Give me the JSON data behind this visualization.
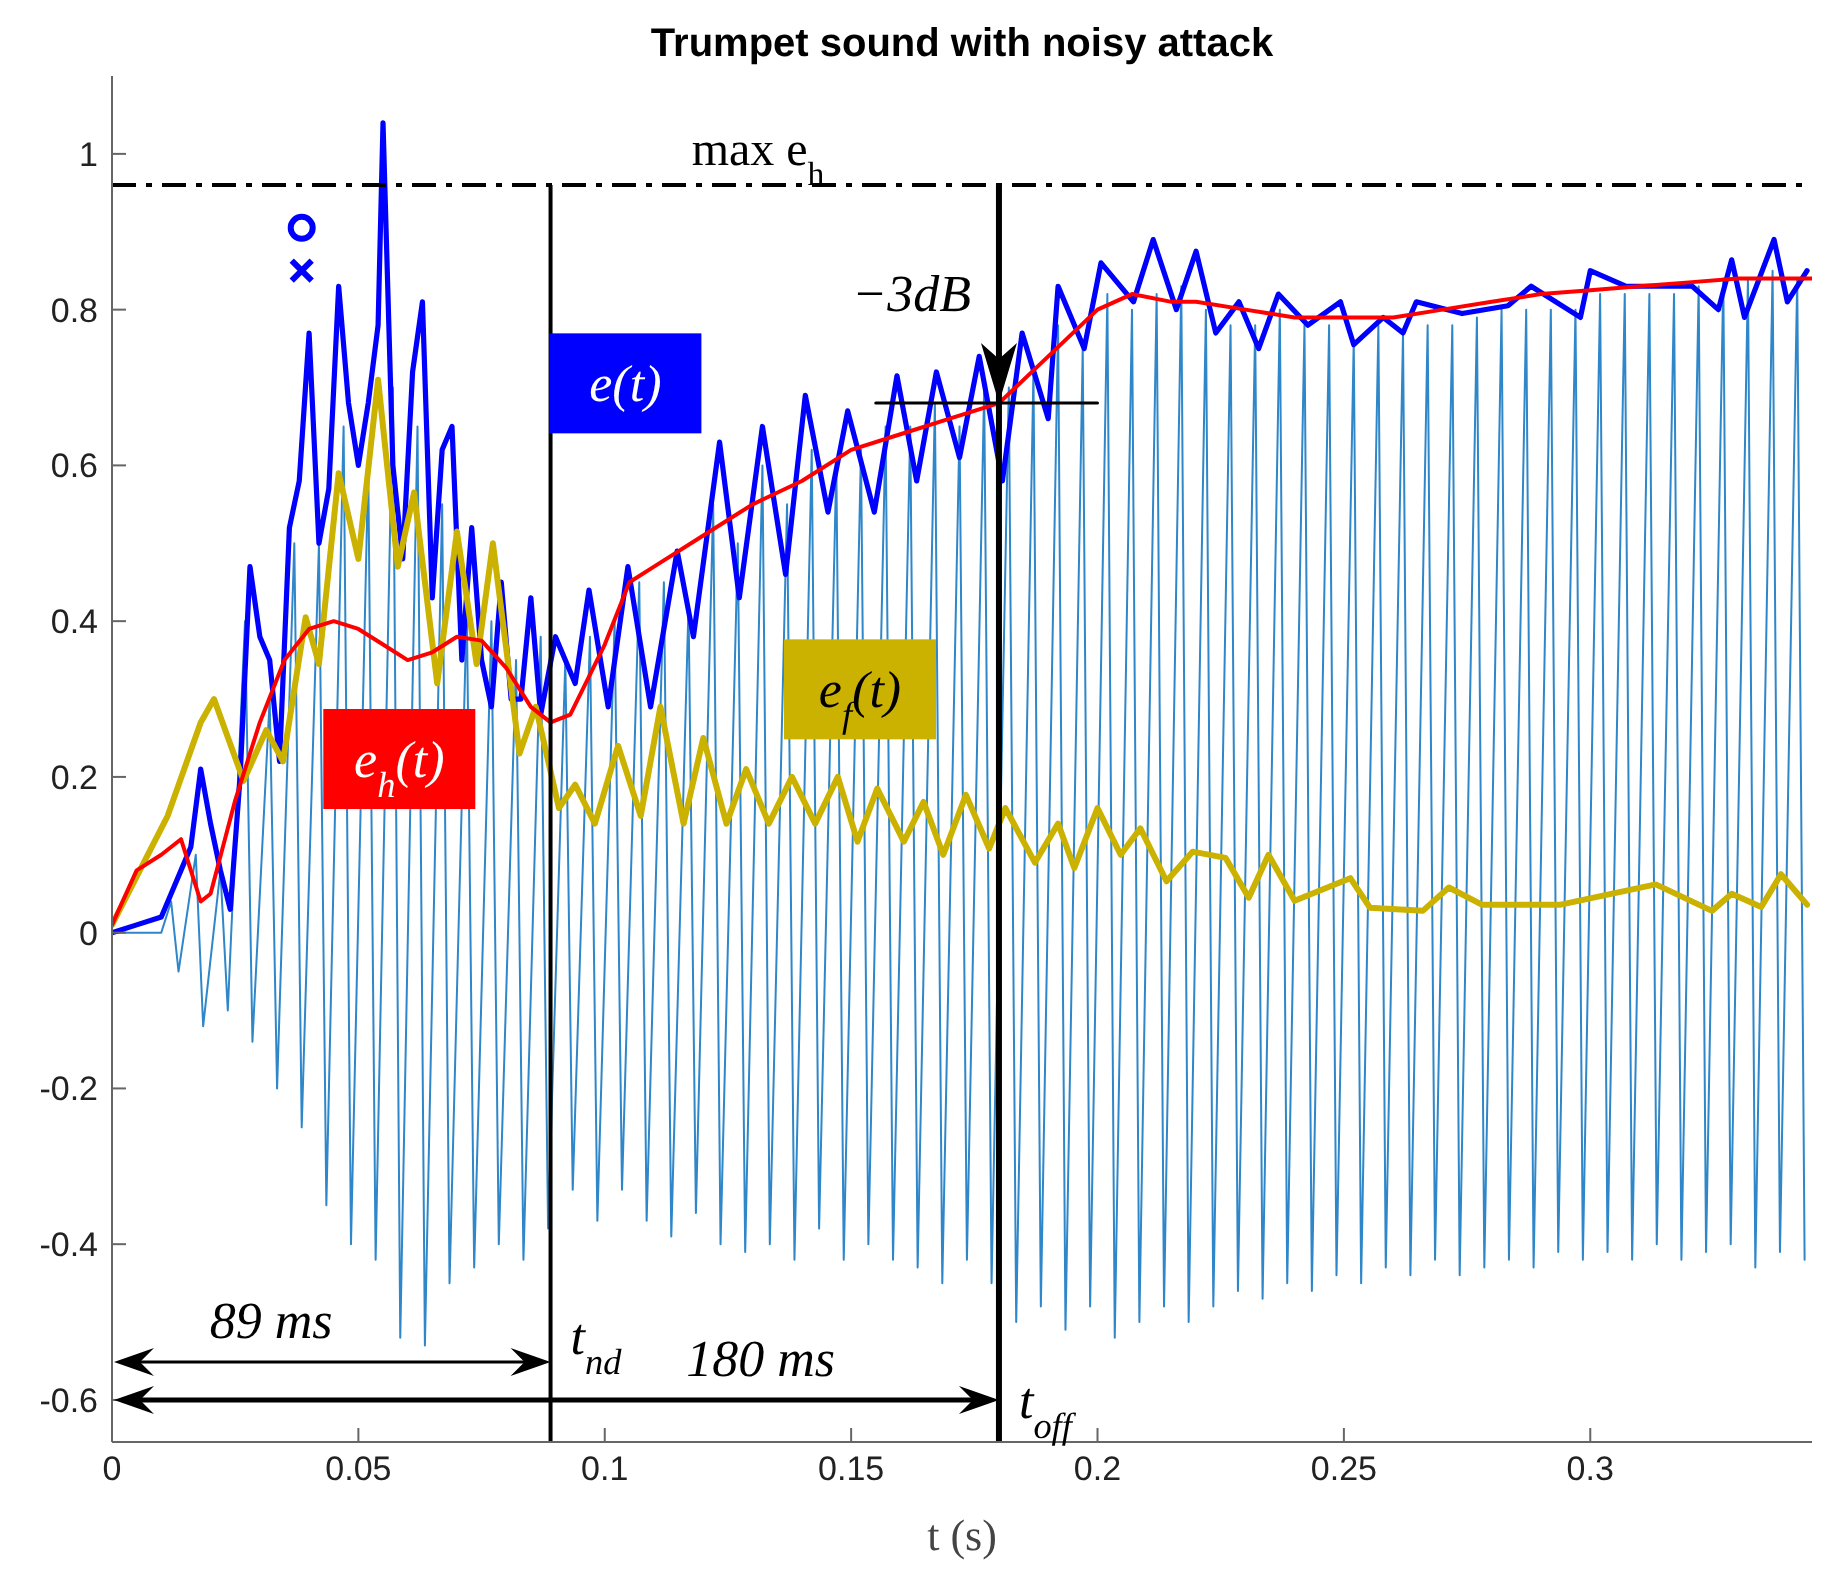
{
  "chart_data": {
    "type": "line",
    "title": "Trumpet sound with noisy attack",
    "xlabel": "t (s)",
    "xlim": [
      0,
      0.345
    ],
    "xticks": [
      0,
      0.05,
      0.1,
      0.15,
      0.2,
      0.25,
      0.3
    ],
    "ylim": [
      -0.654,
      1.1
    ],
    "yticks": [
      -0.6,
      -0.4,
      -0.2,
      0,
      0.2,
      0.4,
      0.6,
      0.8,
      1
    ],
    "marker": "none",
    "line_style": "solid",
    "series": [
      {
        "color": "#2f86c9",
        "x": [
          0,
          0.01,
          0.012,
          0.0135,
          0.017,
          0.0185,
          0.022,
          0.0235,
          0.027,
          0.0285,
          0.032,
          0.0335,
          0.037,
          0.0385,
          0.042,
          0.0435,
          0.047,
          0.0485,
          0.052,
          0.0535,
          0.057,
          0.0585,
          0.062,
          0.0635,
          0.067,
          0.0685,
          0.072,
          0.0735,
          0.077,
          0.0785,
          0.082,
          0.0835,
          0.087,
          0.0885,
          0.092,
          0.0935,
          0.097,
          0.0985,
          0.102,
          0.1035,
          0.107,
          0.1085,
          0.112,
          0.1135,
          0.117,
          0.1185,
          0.122,
          0.1235,
          0.127,
          0.1285,
          0.132,
          0.1335,
          0.137,
          0.1385,
          0.142,
          0.1435,
          0.147,
          0.1485,
          0.152,
          0.1535,
          0.157,
          0.1585,
          0.162,
          0.1635,
          0.167,
          0.1685,
          0.172,
          0.1735,
          0.177,
          0.1785,
          0.182,
          0.1835,
          0.187,
          0.1885,
          0.192,
          0.1935,
          0.197,
          0.1985,
          0.202,
          0.2035,
          0.207,
          0.2085,
          0.212,
          0.2135,
          0.217,
          0.2185,
          0.222,
          0.2235,
          0.227,
          0.2285,
          0.232,
          0.2335,
          0.237,
          0.2385,
          0.242,
          0.2435,
          0.247,
          0.2485,
          0.252,
          0.2535,
          0.257,
          0.2585,
          0.262,
          0.2635,
          0.267,
          0.2685,
          0.272,
          0.2735,
          0.277,
          0.2785,
          0.282,
          0.2835,
          0.287,
          0.2885,
          0.292,
          0.2935,
          0.297,
          0.2985,
          0.302,
          0.3035,
          0.307,
          0.3085,
          0.312,
          0.3135,
          0.317,
          0.3185,
          0.322,
          0.3235,
          0.327,
          0.3285,
          0.332,
          0.3335,
          0.337,
          0.3385,
          0.342,
          0.3435
        ],
        "values": [
          0,
          0,
          0.04,
          -0.05,
          0.1,
          -0.12,
          0.08,
          -0.1,
          0.4,
          -0.14,
          0.3,
          -0.2,
          0.5,
          -0.25,
          0.5,
          -0.35,
          0.65,
          -0.4,
          0.6,
          -0.42,
          0.7,
          -0.52,
          0.65,
          -0.53,
          0.55,
          -0.45,
          0.42,
          -0.43,
          0.4,
          -0.4,
          0.35,
          -0.42,
          0.38,
          -0.38,
          0.35,
          -0.33,
          0.38,
          -0.37,
          0.4,
          -0.33,
          0.45,
          -0.37,
          0.45,
          -0.39,
          0.42,
          -0.36,
          0.55,
          -0.4,
          0.5,
          -0.41,
          0.6,
          -0.4,
          0.55,
          -0.42,
          0.62,
          -0.38,
          0.6,
          -0.42,
          0.62,
          -0.4,
          0.65,
          -0.42,
          0.65,
          -0.43,
          0.68,
          -0.45,
          0.65,
          -0.42,
          0.7,
          -0.45,
          0.7,
          -0.5,
          0.72,
          -0.48,
          0.78,
          -0.51,
          0.75,
          -0.48,
          0.82,
          -0.52,
          0.8,
          -0.5,
          0.82,
          -0.48,
          0.83,
          -0.5,
          0.8,
          -0.48,
          0.78,
          -0.46,
          0.78,
          -0.47,
          0.8,
          -0.45,
          0.78,
          -0.46,
          0.78,
          -0.44,
          0.76,
          -0.45,
          0.78,
          -0.43,
          0.77,
          -0.44,
          0.78,
          -0.42,
          0.78,
          -0.44,
          0.79,
          -0.43,
          0.8,
          -0.42,
          0.8,
          -0.43,
          0.8,
          -0.41,
          0.8,
          -0.42,
          0.82,
          -0.41,
          0.82,
          -0.42,
          0.82,
          -0.4,
          0.82,
          -0.42,
          0.83,
          -0.41,
          0.84,
          -0.4,
          0.84,
          -0.43,
          0.85,
          -0.41,
          0.84,
          -0.42
        ]
      },
      {
        "name": "e(t)",
        "color": "#0000ff",
        "x": [
          0,
          0.005,
          0.01,
          0.012,
          0.014,
          0.016,
          0.018,
          0.02,
          0.022,
          0.024,
          0.026,
          0.028,
          0.03,
          0.032,
          0.034,
          0.036,
          0.038,
          0.04,
          0.042,
          0.044,
          0.046,
          0.048,
          0.05,
          0.052,
          0.054,
          0.055,
          0.057,
          0.059,
          0.061,
          0.063,
          0.065,
          0.067,
          0.069,
          0.071,
          0.073,
          0.075,
          0.077,
          0.079,
          0.081,
          0.083,
          0.085,
          0.087,
          0.09,
          0.094,
          0.0968,
          0.1007,
          0.1047,
          0.1093,
          0.1147,
          0.118,
          0.1233,
          0.1273,
          0.132,
          0.1367,
          0.1407,
          0.1453,
          0.1493,
          0.1547,
          0.1593,
          0.1633,
          0.1673,
          0.172,
          0.176,
          0.1807,
          0.1847,
          0.19,
          0.192,
          0.1973,
          0.2007,
          0.2073,
          0.2113,
          0.216,
          0.22,
          0.224,
          0.2287,
          0.2327,
          0.2367,
          0.2427,
          0.2493,
          0.252,
          0.258,
          0.262,
          0.2647,
          0.274,
          0.2833,
          0.288,
          0.298,
          0.3,
          0.3073,
          0.3207,
          0.326,
          0.3287,
          0.3313,
          0.3373,
          0.34,
          0.344
        ],
        "values": [
          0,
          0.01,
          0.02,
          0.05,
          0.08,
          0.11,
          0.21,
          0.14,
          0.08,
          0.03,
          0.2,
          0.47,
          0.38,
          0.35,
          0.22,
          0.52,
          0.58,
          0.77,
          0.5,
          0.57,
          0.83,
          0.68,
          0.6,
          0.68,
          0.78,
          1.04,
          0.6,
          0.48,
          0.72,
          0.81,
          0.43,
          0.62,
          0.65,
          0.35,
          0.52,
          0.35,
          0.29,
          0.45,
          0.3,
          0.3,
          0.43,
          0.28,
          0.38,
          0.32,
          0.44,
          0.29,
          0.47,
          0.29,
          0.49,
          0.38,
          0.63,
          0.43,
          0.65,
          0.46,
          0.69,
          0.54,
          0.67,
          0.54,
          0.715,
          0.58,
          0.72,
          0.61,
          0.74,
          0.58,
          0.77,
          0.66,
          0.83,
          0.75,
          0.86,
          0.81,
          0.89,
          0.8,
          0.875,
          0.77,
          0.81,
          0.75,
          0.82,
          0.78,
          0.81,
          0.755,
          0.79,
          0.77,
          0.81,
          0.795,
          0.805,
          0.83,
          0.79,
          0.85,
          0.83,
          0.83,
          0.8,
          0.864,
          0.79,
          0.89,
          0.81,
          0.85
        ]
      },
      {
        "name": "e$_{f}$(t)",
        "color": "#cbb100",
        "x": [
          0,
          0.0113,
          0.018,
          0.0207,
          0.0267,
          0.0313,
          0.0347,
          0.0393,
          0.042,
          0.046,
          0.05,
          0.054,
          0.058,
          0.0613,
          0.066,
          0.07,
          0.074,
          0.0773,
          0.0827,
          0.086,
          0.0907,
          0.094,
          0.098,
          0.1027,
          0.1073,
          0.1113,
          0.116,
          0.12,
          0.1247,
          0.1287,
          0.1333,
          0.138,
          0.1427,
          0.1473,
          0.1513,
          0.1553,
          0.1607,
          0.1647,
          0.1687,
          0.1733,
          0.178,
          0.1813,
          0.1873,
          0.192,
          0.1953,
          0.2,
          0.2047,
          0.2087,
          0.214,
          0.2193,
          0.226,
          0.2307,
          0.2347,
          0.24,
          0.2513,
          0.2553,
          0.266,
          0.2713,
          0.278,
          0.294,
          0.3133,
          0.3247,
          0.3287,
          0.3347,
          0.3387,
          0.344
        ],
        "values": [
          0.01,
          0.15,
          0.27,
          0.3,
          0.195,
          0.26,
          0.22,
          0.405,
          0.345,
          0.59,
          0.48,
          0.71,
          0.47,
          0.565,
          0.32,
          0.515,
          0.345,
          0.5,
          0.23,
          0.29,
          0.16,
          0.19,
          0.14,
          0.24,
          0.15,
          0.29,
          0.14,
          0.25,
          0.14,
          0.21,
          0.14,
          0.2,
          0.14,
          0.2,
          0.117,
          0.185,
          0.117,
          0.168,
          0.1,
          0.177,
          0.108,
          0.16,
          0.09,
          0.14,
          0.083,
          0.16,
          0.1,
          0.134,
          0.066,
          0.104,
          0.096,
          0.045,
          0.1,
          0.041,
          0.07,
          0.032,
          0.028,
          0.058,
          0.036,
          0.036,
          0.062,
          0.028,
          0.05,
          0.033,
          0.075,
          0.036
        ]
      },
      {
        "name": "e$_{h}$(t)",
        "color": "#ff0000",
        "x": [
          0,
          0.005,
          0.01,
          0.014,
          0.016,
          0.018,
          0.02,
          0.025,
          0.03,
          0.035,
          0.04,
          0.045,
          0.05,
          0.055,
          0.06,
          0.065,
          0.07,
          0.075,
          0.08,
          0.085,
          0.089,
          0.093,
          0.1,
          0.105,
          0.11,
          0.12,
          0.13,
          0.14,
          0.15,
          0.16,
          0.17,
          0.18,
          0.19,
          0.2,
          0.207,
          0.215,
          0.22,
          0.23,
          0.24,
          0.25,
          0.26,
          0.27,
          0.28,
          0.29,
          0.3,
          0.31,
          0.32,
          0.33,
          0.345
        ],
        "values": [
          0.01,
          0.08,
          0.1,
          0.12,
          0.08,
          0.04,
          0.05,
          0.17,
          0.27,
          0.35,
          0.39,
          0.4,
          0.39,
          0.37,
          0.35,
          0.36,
          0.38,
          0.375,
          0.34,
          0.29,
          0.27,
          0.28,
          0.37,
          0.45,
          0.47,
          0.51,
          0.55,
          0.58,
          0.62,
          0.64,
          0.66,
          0.68,
          0.74,
          0.8,
          0.82,
          0.81,
          0.81,
          0.8,
          0.79,
          0.79,
          0.79,
          0.8,
          0.81,
          0.82,
          0.825,
          0.83,
          0.835,
          0.84,
          0.84
        ]
      },
      {
        "color": "#000000",
        "x": [
          0.155,
          0.2
        ],
        "values": [
          0.68,
          0.68
        ]
      },
      {
        "type": "scatter",
        "marker": "circle",
        "color": "#0000ff",
        "x": [
          0.0385
        ],
        "values": [
          0.905
        ]
      },
      {
        "type": "scatter",
        "marker": "cross",
        "color": "#0000ff",
        "x": [
          0.0385
        ],
        "values": [
          0.85
        ]
      }
    ],
    "ref_lines": [
      {
        "axis": "y",
        "value": 0.96,
        "label": "max e$_{h}$",
        "color": "#000000",
        "line_style": "dashed"
      },
      {
        "axis": "x",
        "value": 0.089,
        "label": "t$_{nd}$",
        "color": "#000000",
        "line_style": "solid"
      },
      {
        "axis": "x",
        "value": 0.18,
        "label": "t$_{off}$",
        "color": "#000000",
        "line_style": "solid"
      }
    ],
    "annotations": [
      {
        "text": "−3dB",
        "x": 0.18,
        "y": 0.68
      },
      "89 ms",
      "180 ms"
    ]
  }
}
